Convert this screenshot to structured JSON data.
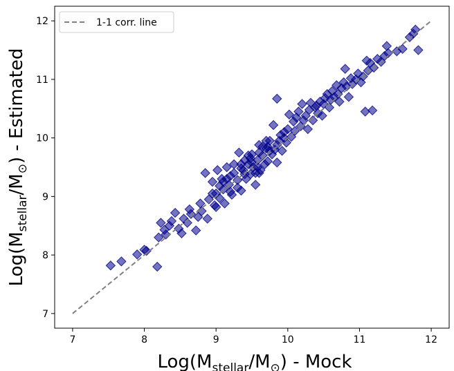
{
  "chart_data": {
    "type": "scatter",
    "title": "",
    "xlabel": {
      "prefix": "Log(M",
      "sub": "stellar",
      "mid": "/M",
      "symbol": "⊙",
      "suffix": ") - Mock"
    },
    "ylabel": {
      "prefix": "Log(M",
      "sub": "stellar",
      "mid": "/M",
      "symbol": "⊙",
      "suffix": ") - Estimated"
    },
    "xlim": [
      6.75,
      12.25
    ],
    "ylim": [
      6.75,
      12.25
    ],
    "xticks": [
      "7",
      "8",
      "9",
      "10",
      "11",
      "12"
    ],
    "yticks": [
      "7",
      "8",
      "9",
      "10",
      "11",
      "12"
    ],
    "grid": false,
    "legend": {
      "position": "top-left",
      "entries": [
        {
          "label": "1-1 corr. line",
          "style": "dashed",
          "color": "#808080"
        }
      ]
    },
    "reference_line": {
      "x": [
        7,
        12
      ],
      "y": [
        7,
        12
      ],
      "color": "#808080",
      "style": "dashed"
    },
    "marker": {
      "shape": "diamond",
      "color": "#00008b",
      "alpha": 0.55
    },
    "series": [
      {
        "points": [
          [
            7.53,
            7.82
          ],
          [
            7.68,
            7.89
          ],
          [
            7.9,
            8.01
          ],
          [
            8.0,
            8.09
          ],
          [
            8.03,
            8.07
          ],
          [
            8.18,
            7.8
          ],
          [
            8.2,
            8.3
          ],
          [
            8.23,
            8.55
          ],
          [
            8.28,
            8.43
          ],
          [
            8.3,
            8.35
          ],
          [
            8.35,
            8.5
          ],
          [
            8.38,
            8.58
          ],
          [
            8.43,
            8.72
          ],
          [
            8.48,
            8.45
          ],
          [
            8.52,
            8.37
          ],
          [
            8.55,
            8.62
          ],
          [
            8.6,
            8.55
          ],
          [
            8.63,
            8.78
          ],
          [
            8.65,
            8.7
          ],
          [
            8.72,
            8.42
          ],
          [
            8.75,
            8.65
          ],
          [
            8.78,
            8.88
          ],
          [
            8.8,
            8.75
          ],
          [
            8.85,
            9.4
          ],
          [
            8.88,
            8.62
          ],
          [
            8.9,
            8.95
          ],
          [
            8.95,
            9.25
          ],
          [
            9.0,
            8.82
          ],
          [
            9.0,
            9.05
          ],
          [
            9.02,
            9.45
          ],
          [
            9.05,
            8.97
          ],
          [
            9.08,
            9.3
          ],
          [
            9.1,
            9.12
          ],
          [
            9.12,
            8.88
          ],
          [
            9.15,
            9.5
          ],
          [
            9.18,
            9.2
          ],
          [
            9.2,
            9.35
          ],
          [
            9.22,
            9.03
          ],
          [
            9.25,
            9.55
          ],
          [
            9.3,
            9.28
          ],
          [
            9.32,
            9.75
          ],
          [
            9.35,
            9.1
          ],
          [
            9.38,
            9.45
          ],
          [
            9.4,
            9.62
          ],
          [
            9.42,
            9.3
          ],
          [
            9.45,
            9.55
          ],
          [
            9.48,
            9.38
          ],
          [
            9.5,
            9.72
          ],
          [
            9.52,
            9.5
          ],
          [
            9.55,
            9.2
          ],
          [
            9.58,
            9.62
          ],
          [
            9.6,
            9.88
          ],
          [
            9.62,
            9.45
          ],
          [
            9.65,
            9.7
          ],
          [
            9.68,
            9.55
          ],
          [
            9.7,
            9.82
          ],
          [
            9.72,
            9.6
          ],
          [
            9.75,
            9.95
          ],
          [
            9.78,
            9.72
          ],
          [
            9.8,
            10.22
          ],
          [
            9.82,
            9.8
          ],
          [
            9.85,
            9.58
          ],
          [
            9.85,
            10.67
          ],
          [
            9.88,
            9.95
          ],
          [
            9.9,
            10.05
          ],
          [
            9.92,
            9.78
          ],
          [
            9.95,
            10.1
          ],
          [
            9.98,
            9.92
          ],
          [
            10.0,
            10.15
          ],
          [
            10.02,
            10.4
          ],
          [
            10.05,
            10.02
          ],
          [
            10.08,
            10.28
          ],
          [
            10.1,
            10.12
          ],
          [
            10.12,
            10.35
          ],
          [
            10.15,
            10.45
          ],
          [
            10.18,
            10.2
          ],
          [
            10.2,
            10.58
          ],
          [
            10.22,
            10.3
          ],
          [
            10.25,
            10.38
          ],
          [
            10.28,
            10.15
          ],
          [
            10.3,
            10.48
          ],
          [
            10.32,
            10.6
          ],
          [
            10.35,
            10.3
          ],
          [
            10.38,
            10.52
          ],
          [
            10.4,
            10.55
          ],
          [
            10.42,
            10.42
          ],
          [
            10.45,
            10.62
          ],
          [
            10.48,
            10.38
          ],
          [
            10.5,
            10.58
          ],
          [
            10.52,
            10.68
          ],
          [
            10.55,
            10.75
          ],
          [
            10.58,
            10.52
          ],
          [
            10.6,
            10.65
          ],
          [
            10.62,
            10.8
          ],
          [
            10.65,
            10.7
          ],
          [
            10.68,
            10.9
          ],
          [
            10.7,
            10.75
          ],
          [
            10.72,
            10.62
          ],
          [
            10.75,
            10.85
          ],
          [
            10.78,
            10.95
          ],
          [
            10.8,
            11.18
          ],
          [
            10.82,
            10.88
          ],
          [
            10.85,
            10.7
          ],
          [
            10.88,
            11.02
          ],
          [
            10.9,
            10.92
          ],
          [
            10.95,
            11.0
          ],
          [
            10.98,
            11.1
          ],
          [
            11.02,
            10.95
          ],
          [
            11.05,
            11.05
          ],
          [
            11.08,
            10.45
          ],
          [
            11.1,
            11.32
          ],
          [
            11.12,
            11.15
          ],
          [
            11.15,
            11.28
          ],
          [
            11.18,
            10.47
          ],
          [
            11.2,
            11.2
          ],
          [
            11.25,
            11.35
          ],
          [
            11.3,
            11.3
          ],
          [
            11.35,
            11.4
          ],
          [
            11.38,
            11.57
          ],
          [
            11.4,
            11.45
          ],
          [
            11.52,
            11.48
          ],
          [
            11.6,
            11.52
          ],
          [
            11.7,
            11.72
          ],
          [
            11.75,
            11.78
          ],
          [
            11.78,
            11.85
          ],
          [
            11.82,
            11.5
          ],
          [
            9.6,
            9.4
          ],
          [
            9.3,
            9.15
          ],
          [
            9.45,
            9.7
          ],
          [
            9.55,
            9.4
          ],
          [
            9.7,
            9.95
          ],
          [
            9.35,
            9.55
          ],
          [
            9.15,
            9.3
          ],
          [
            9.05,
            9.18
          ],
          [
            9.75,
            9.78
          ],
          [
            9.5,
            9.58
          ],
          [
            9.4,
            9.38
          ],
          [
            9.65,
            9.85
          ],
          [
            9.25,
            9.4
          ],
          [
            9.1,
            9.25
          ],
          [
            8.95,
            9.05
          ],
          [
            8.98,
            8.85
          ],
          [
            9.2,
            9.08
          ],
          [
            9.35,
            9.48
          ],
          [
            9.6,
            9.75
          ],
          [
            9.48,
            9.65
          ],
          [
            9.72,
            9.85
          ],
          [
            9.85,
            9.88
          ],
          [
            9.95,
            10.0
          ],
          [
            9.58,
            9.5
          ]
        ]
      }
    ]
  }
}
